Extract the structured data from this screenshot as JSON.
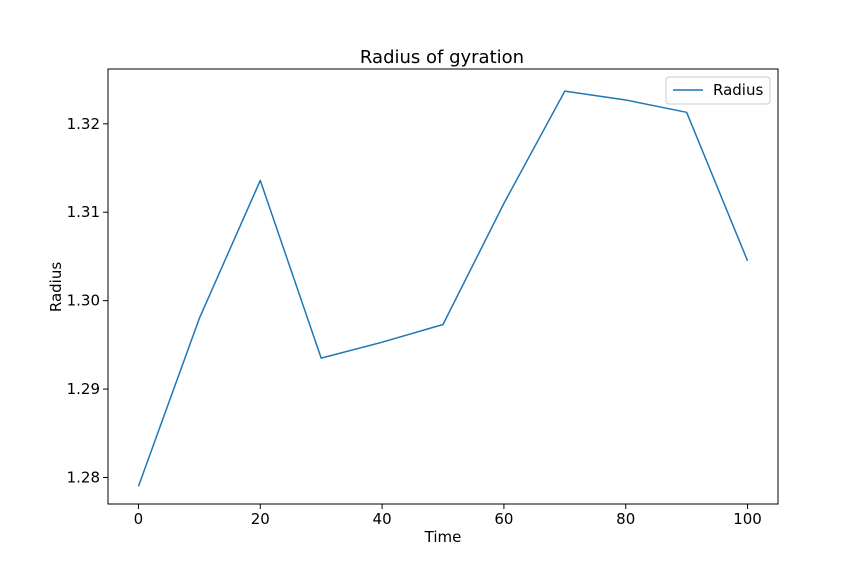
{
  "chart_data": {
    "type": "line",
    "title": "Radius of gyration",
    "xlabel": "Time",
    "ylabel": "Radius",
    "xlim": [
      -5,
      105
    ],
    "ylim": [
      1.277,
      1.3262
    ],
    "xticks": [
      0,
      20,
      40,
      60,
      80,
      100
    ],
    "xtick_labels": [
      "0",
      "20",
      "40",
      "60",
      "80",
      "100"
    ],
    "yticks": [
      1.28,
      1.29,
      1.3,
      1.31,
      1.32
    ],
    "ytick_labels": [
      "1.28",
      "1.29",
      "1.30",
      "1.31",
      "1.32"
    ],
    "grid": false,
    "legend_position": "top-right",
    "series": [
      {
        "name": "Radius",
        "color": "#1f77b4",
        "x": [
          0,
          10,
          20,
          30,
          40,
          50,
          60,
          70,
          80,
          90,
          100
        ],
        "y": [
          1.279,
          1.298,
          1.3136,
          1.2935,
          1.2953,
          1.2973,
          1.311,
          1.3237,
          1.3227,
          1.3213,
          1.3045
        ]
      }
    ]
  }
}
